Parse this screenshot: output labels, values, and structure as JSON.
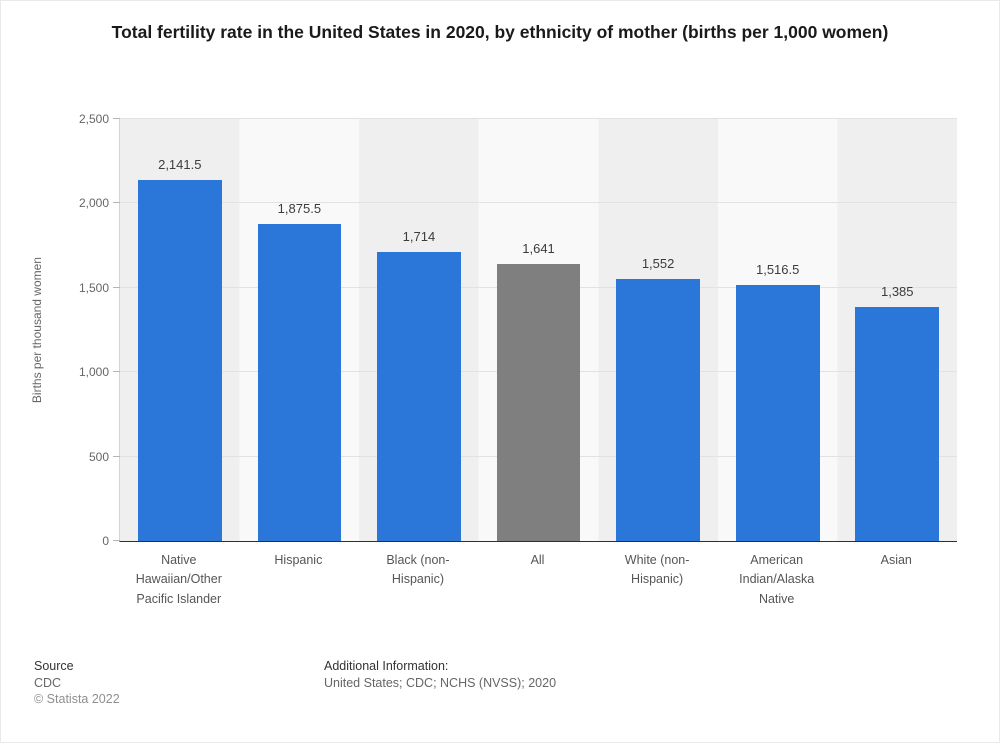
{
  "title": "Total fertility rate in the United States in 2020, by ethnicity of mother (births per 1,000 women)",
  "chart_data": {
    "type": "bar",
    "categories": [
      "Native Hawaiian/Other Pacific Islander",
      "Hispanic",
      "Black (non-Hispanic)",
      "All",
      "White (non-Hispanic)",
      "American Indian/Alaska Native",
      "Asian"
    ],
    "values": [
      2141.5,
      1875.5,
      1714,
      1641,
      1552,
      1516.5,
      1385
    ],
    "value_labels": [
      "2,141.5",
      "1,875.5",
      "1,714",
      "1,641",
      "1,552",
      "1,516.5",
      "1,385"
    ],
    "bar_colors": [
      "#2a76d9",
      "#2a76d9",
      "#2a76d9",
      "#7f7f7f",
      "#2a76d9",
      "#2a76d9",
      "#2a76d9"
    ],
    "title": "Total fertility rate in the United States in 2020, by ethnicity of mother (births per 1,000 women)",
    "xlabel": "",
    "ylabel": "Births per thousand women",
    "ylim": [
      0,
      2500
    ],
    "yticks": [
      0,
      500,
      1000,
      1500,
      2000,
      2500
    ],
    "ytick_labels": [
      "0",
      "500",
      "1,000",
      "1,500",
      "2,000",
      "2,500"
    ],
    "grid": true,
    "legend": false,
    "band_colors": [
      "#efefef",
      "#f9f9f9"
    ]
  },
  "footer": {
    "source_label": "Source",
    "source_value": "CDC",
    "copyright": "© Statista 2022",
    "additional_label": "Additional Information:",
    "additional_value": "United States; CDC; NCHS (NVSS); 2020"
  }
}
